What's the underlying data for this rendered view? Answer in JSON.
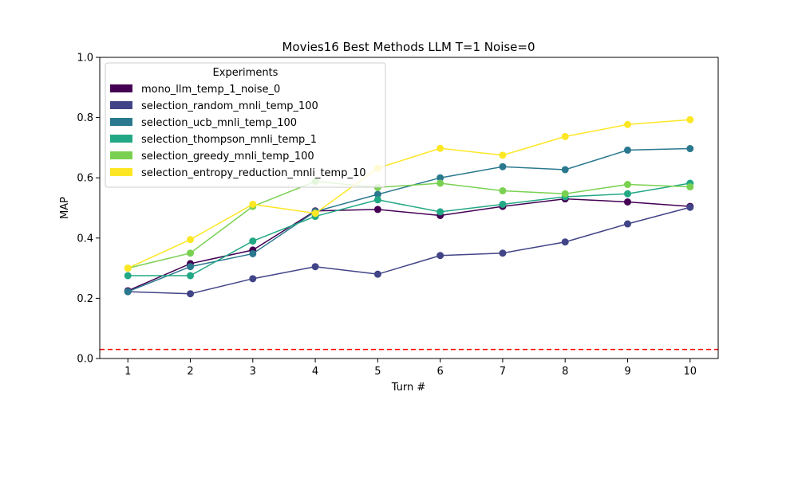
{
  "chart_data": {
    "type": "line",
    "title": "Movies16 Best Methods LLM T=1 Noise=0",
    "xlabel": "Turn #",
    "ylabel": "MAP",
    "x": [
      1,
      2,
      3,
      4,
      5,
      6,
      7,
      8,
      9,
      10
    ],
    "xticks": [
      "1",
      "2",
      "3",
      "4",
      "5",
      "6",
      "7",
      "8",
      "9",
      "10"
    ],
    "ylim": [
      0.0,
      1.0
    ],
    "yticks": [
      "0.0",
      "0.2",
      "0.4",
      "0.6",
      "0.8",
      "1.0"
    ],
    "grid": false,
    "legend": {
      "title": "Experiments",
      "placement": "upper-left"
    },
    "baseline": {
      "y": 0.03,
      "color": "#ff0000",
      "style": "dashed"
    },
    "series": [
      {
        "name": "mono_llm_temp_1_noise_0",
        "color": "#440154",
        "values": [
          0.225,
          0.315,
          0.36,
          0.49,
          0.495,
          0.475,
          0.505,
          0.53,
          0.52,
          0.505
        ]
      },
      {
        "name": "selection_random_mnli_temp_100",
        "color": "#414487",
        "values": [
          0.222,
          0.215,
          0.265,
          0.305,
          0.28,
          0.342,
          0.35,
          0.387,
          0.447,
          0.502
        ]
      },
      {
        "name": "selection_ucb_mnli_temp_100",
        "color": "#2a788e",
        "values": [
          0.222,
          0.305,
          0.348,
          0.488,
          0.545,
          0.6,
          0.637,
          0.627,
          0.692,
          0.697
        ]
      },
      {
        "name": "selection_thompson_mnli_temp_1",
        "color": "#22a884",
        "values": [
          0.275,
          0.275,
          0.39,
          0.472,
          0.527,
          0.487,
          0.512,
          0.537,
          0.547,
          0.582
        ]
      },
      {
        "name": "selection_greedy_mnli_temp_100",
        "color": "#7ad151",
        "values": [
          0.3,
          0.35,
          0.505,
          0.588,
          0.568,
          0.582,
          0.557,
          0.547,
          0.578,
          0.57
        ]
      },
      {
        "name": "selection_entropy_reduction_mnli_temp_10",
        "color": "#fde725",
        "values": [
          0.3,
          0.395,
          0.512,
          0.482,
          0.632,
          0.698,
          0.675,
          0.737,
          0.777,
          0.793
        ]
      }
    ]
  }
}
